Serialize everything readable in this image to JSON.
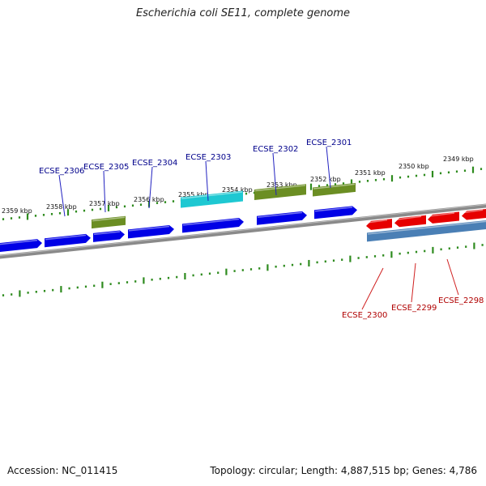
{
  "header": {
    "title": "Escherichia coli SE11, complete genome"
  },
  "footer": {
    "accession": "Accession: NC_011415",
    "summary": "Topology: circular; Length: 4,887,515 bp; Genes: 4,786"
  },
  "colors": {
    "backbone": "#8a8a8a",
    "tick": "#2e8b1e",
    "forward_cds": "#0000e6",
    "forward_gene_olive": "#6b8e23",
    "forward_gene_cyan": "#1ec8d2",
    "reverse_cds": "#e60000",
    "reverse_gene": "#4a7fb5",
    "label_forward": "#00008b",
    "label_reverse": "#b00000"
  },
  "scale_labels": [
    "2359 kbp",
    "2358 kbp",
    "2357 kbp",
    "2356 kbp",
    "2355 kbp",
    "2354 kbp",
    "2353 kbp",
    "2352 kbp",
    "2351 kbp",
    "2350 kbp",
    "2349 kbp"
  ],
  "gene_labels": {
    "forward": [
      "ECSE_2306",
      "ECSE_2305",
      "ECSE_2304",
      "ECSE_2303",
      "ECSE_2302",
      "ECSE_2301"
    ],
    "reverse": [
      "ECSE_2300",
      "ECSE_2299",
      "ECSE_2298"
    ]
  }
}
